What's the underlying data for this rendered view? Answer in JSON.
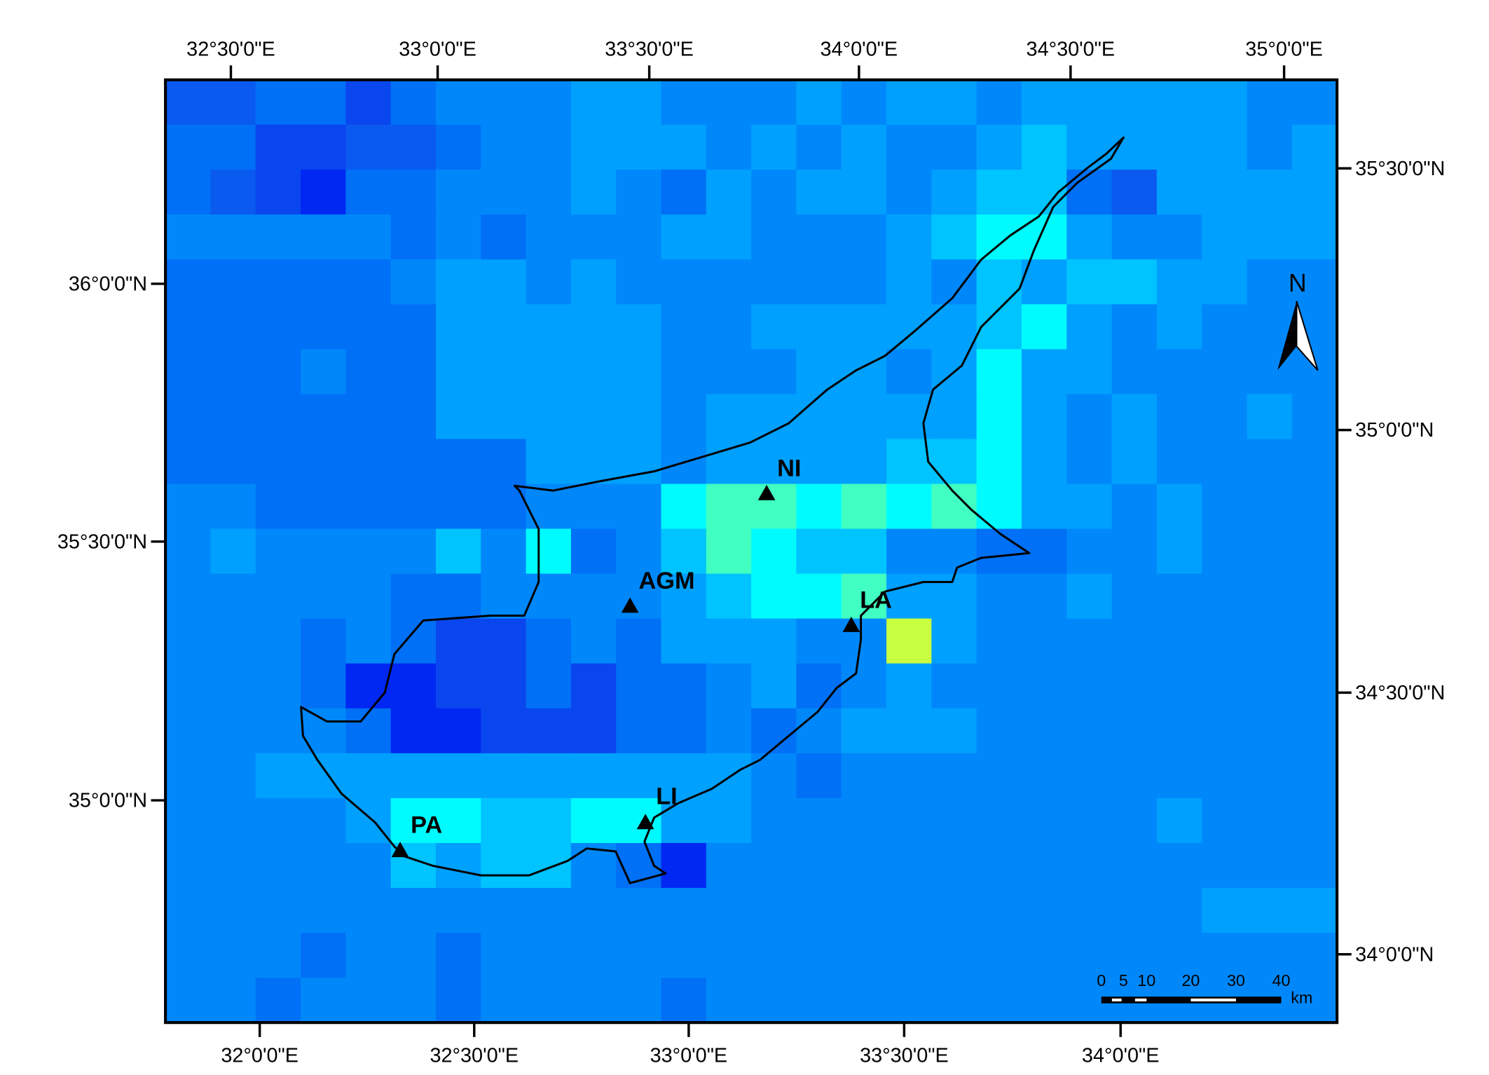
{
  "top_labels": [
    "32°30'0\"E",
    "33°0'0\"E",
    "33°30'0\"E",
    "34°0'0\"E",
    "34°30'0\"E",
    "35°0'0\"E"
  ],
  "bottom_labels": [
    "32°0'0\"E",
    "32°30'0\"E",
    "33°0'0\"E",
    "33°30'0\"E",
    "34°0'0\"E"
  ],
  "left_labels": [
    "36°0'0\"N",
    "35°30'0\"N",
    "35°0'0\"N"
  ],
  "right_labels": [
    "35°30'0\"N",
    "35°0'0\"N",
    "34°30'0\"N",
    "34°0'0\"N"
  ],
  "stations": [
    {
      "label": "NI"
    },
    {
      "label": "AGM"
    },
    {
      "label": "LA"
    },
    {
      "label": "LI"
    },
    {
      "label": "PA"
    }
  ],
  "north": "N",
  "scale": {
    "labels": [
      "0",
      "5",
      "10",
      "20",
      "30",
      "40"
    ],
    "unit": "km"
  }
}
